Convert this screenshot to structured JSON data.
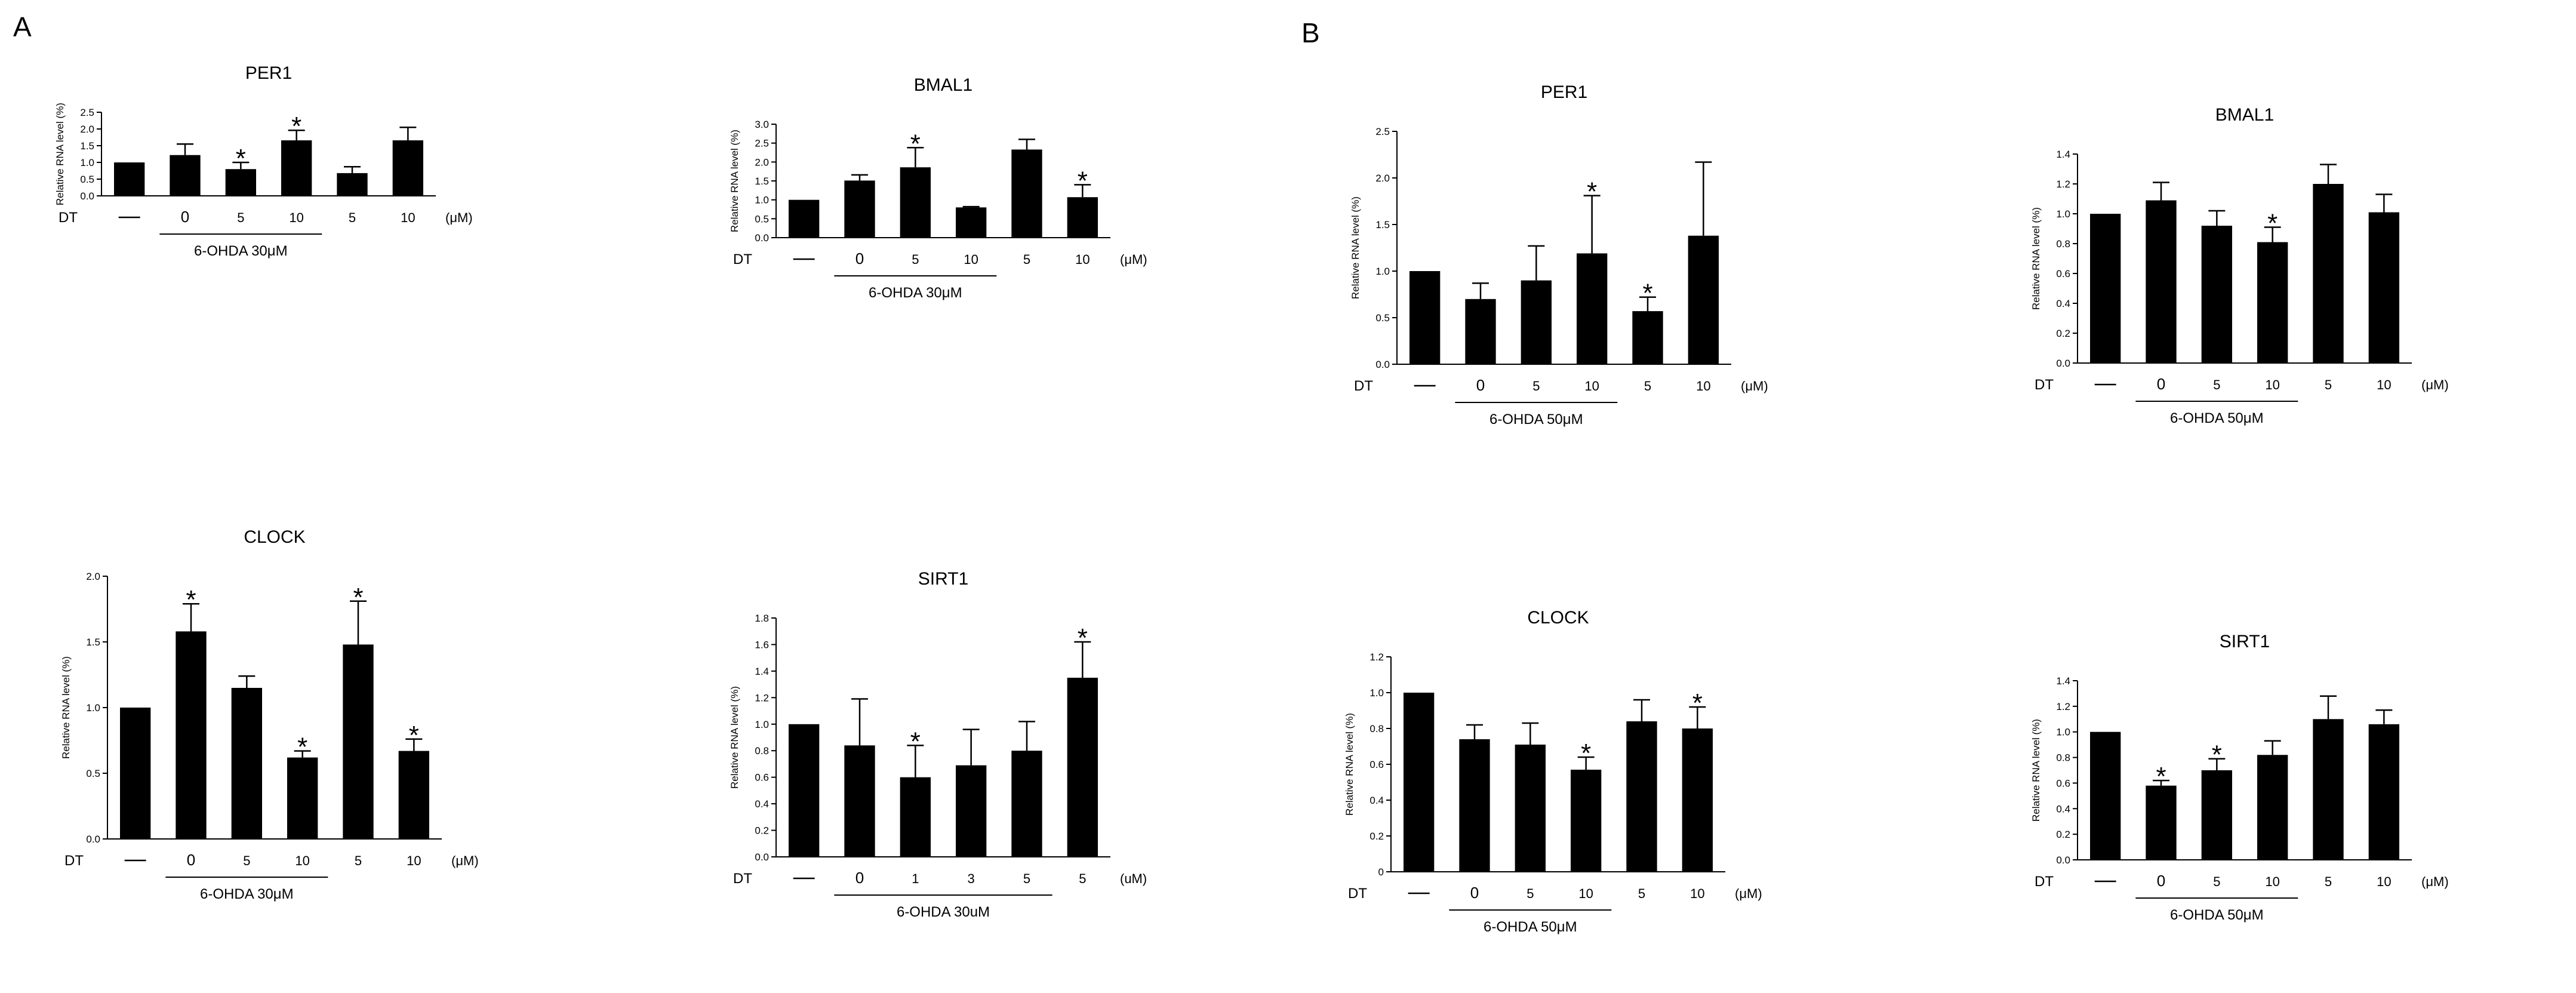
{
  "panels": [
    {
      "letter": "A"
    },
    {
      "letter": "B"
    }
  ],
  "units": {
    "dt_label": "DT",
    "unit_label": "(μM)",
    "ylabel": "Relative RNA level (%)",
    "control_label": "—",
    "star": "*"
  },
  "chart_data": [
    {
      "type": "bar",
      "title": "PER1",
      "ylabel": "Relative RNA level (%)",
      "ylim": [
        0,
        2.5
      ],
      "yticks": [
        "0.0",
        "0.5",
        "1.0",
        "1.5",
        "2.0",
        "2.5"
      ],
      "categories": [
        "—",
        "0",
        "5",
        "10",
        "5",
        "10"
      ],
      "values": [
        1.0,
        1.22,
        0.8,
        1.66,
        0.68,
        1.66
      ],
      "errors": [
        0,
        0.33,
        0.2,
        0.3,
        0.19,
        0.39
      ],
      "significant": [
        false,
        false,
        true,
        true,
        false,
        false
      ],
      "treatment": "6-OHDA 30μM",
      "treatment_span": [
        1,
        3
      ]
    },
    {
      "type": "bar",
      "title": "BMAL1",
      "ylabel": "Relative RNA level (%)",
      "ylim": [
        0,
        3.0
      ],
      "yticks": [
        "0.0",
        "0.5",
        "1.0",
        "1.5",
        "2.0",
        "2.5",
        "3.0"
      ],
      "categories": [
        "—",
        "0",
        "5",
        "10",
        "5",
        "10"
      ],
      "values": [
        1.0,
        1.51,
        1.86,
        0.8,
        2.33,
        1.07
      ],
      "errors": [
        0,
        0.15,
        0.52,
        0.02,
        0.27,
        0.33
      ],
      "significant": [
        false,
        false,
        true,
        false,
        false,
        true
      ],
      "treatment": "6-OHDA 30μM",
      "treatment_span": [
        1,
        3
      ]
    },
    {
      "type": "bar",
      "title": "CLOCK",
      "ylabel": "Relative RNA level (%)",
      "ylim": [
        0,
        2.0
      ],
      "yticks": [
        "0.0",
        "0.5",
        "1.0",
        "1.5",
        "2.0"
      ],
      "categories": [
        "—",
        "0",
        "5",
        "10",
        "5",
        "10"
      ],
      "values": [
        1.0,
        1.58,
        1.15,
        0.62,
        1.48,
        0.67
      ],
      "errors": [
        0,
        0.21,
        0.09,
        0.05,
        0.33,
        0.09
      ],
      "significant": [
        false,
        true,
        false,
        true,
        true,
        true
      ],
      "treatment": "6-OHDA 30μM",
      "treatment_span": [
        1,
        3
      ]
    },
    {
      "type": "bar",
      "title": "SIRT1",
      "ylabel": "Relative RNA level (%)",
      "ylim": [
        0,
        1.8
      ],
      "yticks": [
        "0.0",
        "0.2",
        "0.4",
        "0.6",
        "0.8",
        "1.0",
        "1.2",
        "1.4",
        "1.6",
        "1.8"
      ],
      "categories": [
        "—",
        "0",
        "1",
        "3",
        "5",
        "5"
      ],
      "values": [
        1.0,
        0.84,
        0.6,
        0.69,
        0.8,
        1.35
      ],
      "errors": [
        0,
        0.35,
        0.24,
        0.27,
        0.22,
        0.27
      ],
      "significant": [
        false,
        false,
        true,
        false,
        false,
        true
      ],
      "treatment": "6-OHDA 30uM",
      "treatment_span": [
        1,
        4
      ],
      "unit_label": "(uM)"
    },
    {
      "type": "bar",
      "title": "PER1",
      "ylabel": "Relative RNA level (%)",
      "ylim": [
        0,
        2.5
      ],
      "yticks": [
        "0.0",
        "0.5",
        "1.0",
        "1.5",
        "2.0",
        "2.5"
      ],
      "categories": [
        "—",
        "0",
        "5",
        "10",
        "5",
        "10"
      ],
      "values": [
        1.0,
        0.7,
        0.9,
        1.19,
        0.57,
        1.38
      ],
      "errors": [
        0,
        0.17,
        0.37,
        0.62,
        0.15,
        0.79
      ],
      "significant": [
        false,
        false,
        false,
        true,
        true,
        false
      ],
      "treatment": "6-OHDA 50μM",
      "treatment_span": [
        1,
        3
      ]
    },
    {
      "type": "bar",
      "title": "BMAL1",
      "ylabel": "Relative RNA level (%)",
      "ylim": [
        0,
        1.4
      ],
      "yticks": [
        "0.0",
        "0.2",
        "0.4",
        "0.6",
        "0.8",
        "1.0",
        "1.2",
        "1.4"
      ],
      "categories": [
        "—",
        "0",
        "5",
        "10",
        "5",
        "10"
      ],
      "values": [
        1.0,
        1.09,
        0.92,
        0.81,
        1.2,
        1.01
      ],
      "errors": [
        0,
        0.12,
        0.1,
        0.1,
        0.13,
        0.12
      ],
      "significant": [
        false,
        false,
        false,
        true,
        false,
        false
      ],
      "treatment": "6-OHDA 50μM",
      "treatment_span": [
        1,
        3
      ]
    },
    {
      "type": "bar",
      "title": "CLOCK",
      "ylabel": "Relative RNA level (%)",
      "ylim": [
        0,
        1.2
      ],
      "yticks": [
        "0",
        "0.2",
        "0.4",
        "0.6",
        "0.8",
        "1.0",
        "1.2"
      ],
      "categories": [
        "—",
        "0",
        "5",
        "10",
        "5",
        "10"
      ],
      "values": [
        1.0,
        0.74,
        0.71,
        0.57,
        0.84,
        0.8
      ],
      "errors": [
        0,
        0.08,
        0.12,
        0.07,
        0.12,
        0.12
      ],
      "significant": [
        false,
        false,
        false,
        true,
        false,
        true
      ],
      "treatment": "6-OHDA 50μM",
      "treatment_span": [
        1,
        3
      ]
    },
    {
      "type": "bar",
      "title": "SIRT1",
      "ylabel": "Relative RNA level (%)",
      "ylim": [
        0,
        1.4
      ],
      "yticks": [
        "0.0",
        "0.2",
        "0.4",
        "0.6",
        "0.8",
        "1.0",
        "1.2",
        "1.4"
      ],
      "categories": [
        "—",
        "0",
        "5",
        "10",
        "5",
        "10"
      ],
      "values": [
        1.0,
        0.58,
        0.7,
        0.82,
        1.1,
        1.06
      ],
      "errors": [
        0,
        0.04,
        0.09,
        0.11,
        0.18,
        0.11
      ],
      "significant": [
        false,
        true,
        true,
        false,
        false,
        false
      ],
      "treatment": "6-OHDA 50μM",
      "treatment_span": [
        1,
        3
      ]
    }
  ]
}
